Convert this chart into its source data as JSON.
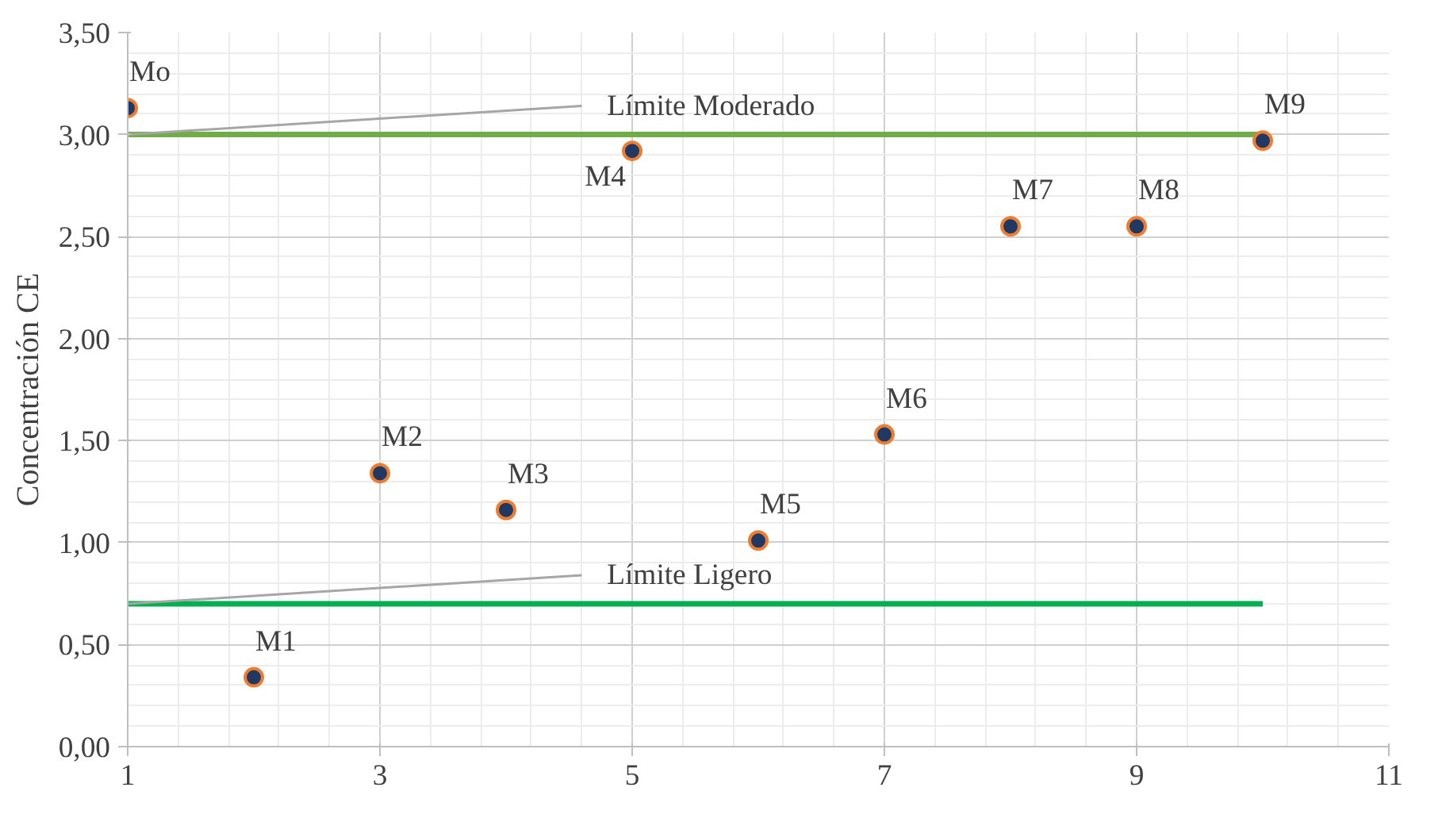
{
  "chart_data": {
    "type": "scatter",
    "ylabel": "Concentración CE",
    "xlim": [
      1,
      11
    ],
    "xticks": [
      1,
      3,
      5,
      7,
      9,
      11
    ],
    "ylim": [
      0,
      3.5
    ],
    "yticks": [
      {
        "value": 0,
        "label": "0,00"
      },
      {
        "value": 0.5,
        "label": "0,50"
      },
      {
        "value": 1,
        "label": "1,00"
      },
      {
        "value": 1.5,
        "label": "1,50"
      },
      {
        "value": 2,
        "label": "2,00"
      },
      {
        "value": 2.5,
        "label": "2,50"
      },
      {
        "value": 3,
        "label": "3,00"
      },
      {
        "value": 3.5,
        "label": "3,50"
      }
    ],
    "grid": true,
    "marker": "circle",
    "series": [
      {
        "color": "#1f3864",
        "x": [
          1,
          2,
          3,
          4,
          5,
          6,
          7,
          8,
          9,
          10
        ],
        "values": [
          3.13,
          0.34,
          1.34,
          1.16,
          2.92,
          1.01,
          1.53,
          2.55,
          2.55,
          2.97
        ]
      },
      {
        "type": "line",
        "name": "Límite Moderado",
        "marker": "none",
        "color": "#70ad47",
        "x": [
          1,
          10
        ],
        "values": [
          3,
          3
        ]
      },
      {
        "type": "line",
        "name": "Límite Ligero",
        "marker": "none",
        "color": "#00b050",
        "x": [
          1,
          10
        ],
        "values": [
          0.7,
          0.7
        ]
      }
    ],
    "annotations": [
      {
        "text": "Mo",
        "x": 1,
        "y": 3.13
      },
      {
        "text": "M1",
        "x": 2,
        "y": 0.34
      },
      {
        "text": "M2",
        "x": 3,
        "y": 1.34
      },
      {
        "text": "M3",
        "x": 4,
        "y": 1.16
      },
      {
        "text": "M4",
        "x": 5,
        "y": 2.92
      },
      {
        "text": "M5",
        "x": 6,
        "y": 1.01
      },
      {
        "text": "M6",
        "x": 7,
        "y": 1.53
      },
      {
        "text": "M7",
        "x": 8,
        "y": 2.55
      },
      {
        "text": "M8",
        "x": 9,
        "y": 2.55
      },
      {
        "text": "M9",
        "x": 10,
        "y": 2.97
      }
    ]
  }
}
